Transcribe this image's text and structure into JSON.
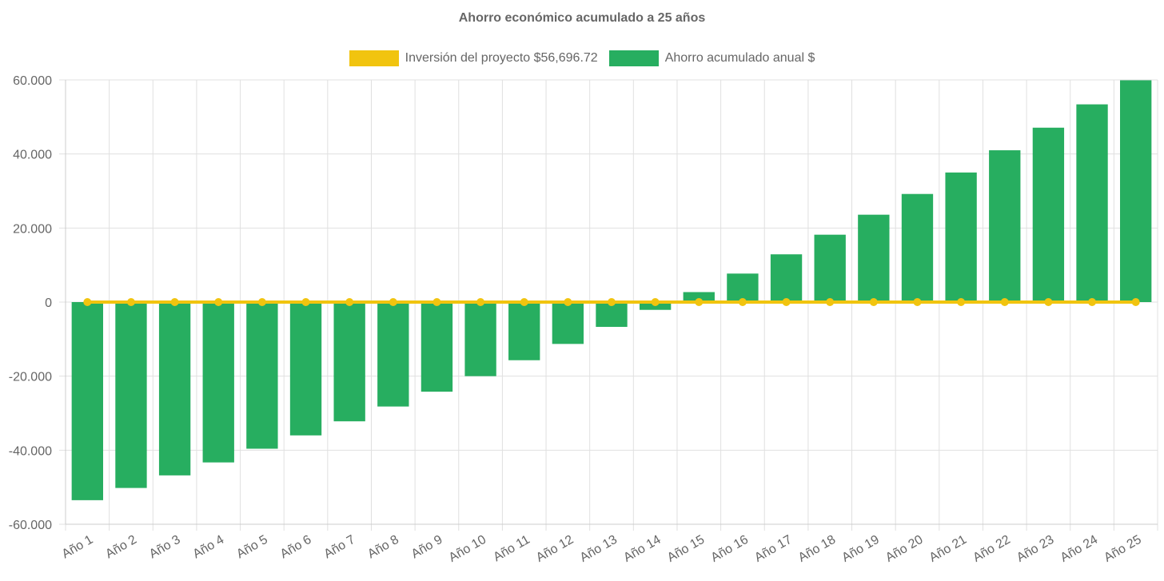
{
  "chart_data": {
    "type": "bar",
    "title": "Ahorro económico acumulado a 25 años",
    "categories": [
      "Año 1",
      "Año 2",
      "Año 3",
      "Año 4",
      "Año 5",
      "Año 6",
      "Año 7",
      "Año 8",
      "Año 9",
      "Año 10",
      "Año 11",
      "Año 12",
      "Año 13",
      "Año 14",
      "Año 15",
      "Año 16",
      "Año 17",
      "Año 18",
      "Año 19",
      "Año 20",
      "Año 21",
      "Año 22",
      "Año 23",
      "Año 24",
      "Año 25"
    ],
    "series": [
      {
        "name": "Inversión del proyecto $56,696.72",
        "type": "line",
        "color": "#f1c40f",
        "values": [
          0,
          0,
          0,
          0,
          0,
          0,
          0,
          0,
          0,
          0,
          0,
          0,
          0,
          0,
          0,
          0,
          0,
          0,
          0,
          0,
          0,
          0,
          0,
          0,
          0
        ]
      },
      {
        "name": "Ahorro acumulado anual $",
        "type": "bar",
        "color": "#27ae60",
        "values": [
          -53500,
          -50200,
          -46800,
          -43300,
          -39600,
          -36000,
          -32200,
          -28200,
          -24200,
          -20000,
          -15700,
          -11300,
          -6700,
          -2100,
          2700,
          7700,
          12900,
          18200,
          23600,
          29200,
          35000,
          41000,
          47100,
          53400,
          59900
        ]
      }
    ],
    "ylim": [
      -60000,
      60000
    ],
    "yticks": [
      {
        "value": 60000,
        "label": "60.000"
      },
      {
        "value": 40000,
        "label": "40.000"
      },
      {
        "value": 20000,
        "label": "20.000"
      },
      {
        "value": 0,
        "label": "0"
      },
      {
        "value": -20000,
        "label": "-20.000"
      },
      {
        "value": -40000,
        "label": "-40.000"
      },
      {
        "value": -60000,
        "label": "-60.000"
      }
    ],
    "grid": true,
    "legend_position": "top"
  }
}
